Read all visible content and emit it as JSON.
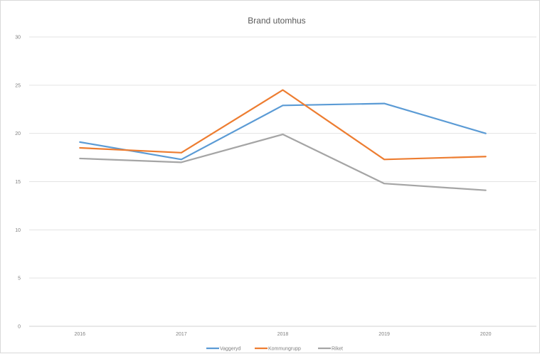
{
  "chart_data": {
    "type": "line",
    "title": "Brand utomhus",
    "xlabel": "",
    "ylabel": "",
    "categories": [
      "2016",
      "2017",
      "2018",
      "2019",
      "2020"
    ],
    "ylim": [
      0,
      30
    ],
    "yticks": [
      "0",
      "5",
      "10",
      "15",
      "20",
      "25",
      "30"
    ],
    "grid": true,
    "legend_position": "bottom",
    "series": [
      {
        "name": "Vaggeryd",
        "color": "#5b9bd5",
        "values": [
          19.1,
          17.3,
          22.9,
          23.1,
          20.0
        ]
      },
      {
        "name": "Kommungrupp",
        "color": "#ed7d31",
        "values": [
          18.5,
          18.0,
          24.5,
          17.3,
          17.6
        ]
      },
      {
        "name": "Riket",
        "color": "#a5a5a5",
        "values": [
          17.4,
          17.0,
          19.9,
          14.8,
          14.1
        ]
      }
    ]
  }
}
